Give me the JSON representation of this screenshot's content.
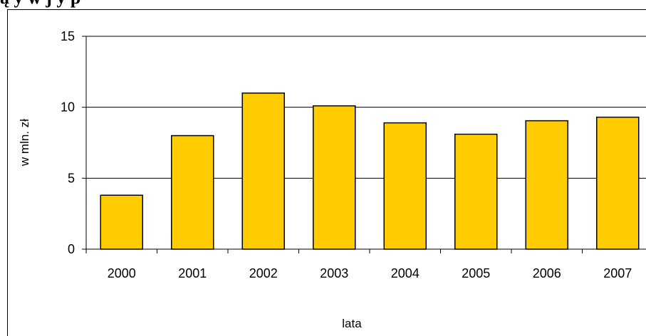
{
  "header": {
    "title_fragment": "ą y w  j y p"
  },
  "chart_data": {
    "type": "bar",
    "categories": [
      "2000",
      "2001",
      "2002",
      "2003",
      "2004",
      "2005",
      "2006",
      "2007"
    ],
    "values": [
      3.8,
      8.0,
      11.0,
      10.1,
      8.9,
      8.1,
      9.05,
      9.3
    ],
    "xlabel": "lata",
    "ylabel": "w mln. zł",
    "ylim": [
      0,
      15
    ],
    "yticks": [
      0,
      5,
      10,
      15
    ],
    "grid": true,
    "bar_color": "#FFCC00",
    "bar_border_color": "#000000"
  }
}
